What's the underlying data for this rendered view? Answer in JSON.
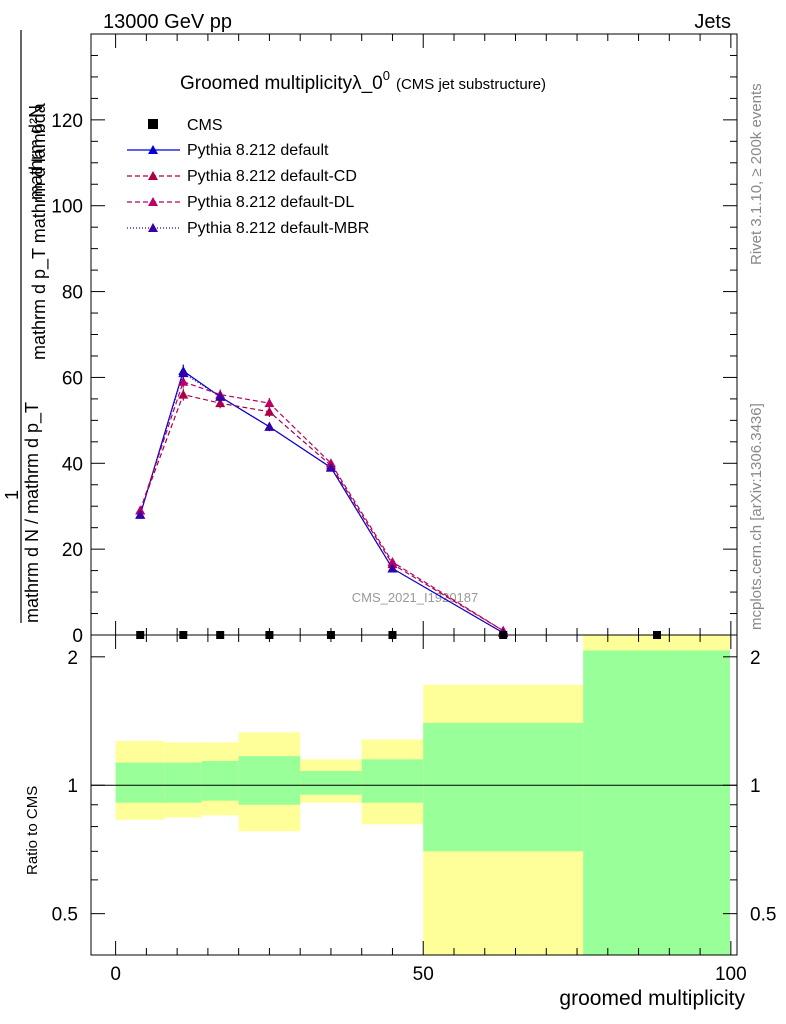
{
  "header": {
    "left": "13000 GeV pp",
    "right": "Jets"
  },
  "side_labels": {
    "rivet": "Rivet 3.1.10, ≥ 200k events",
    "mcplots": "mcplots.cern.ch [arXiv:1306.3436]"
  },
  "title": {
    "main": "Groomed multiplicityλ_0",
    "sup": "0",
    "sub": "(CMS jet substructure)"
  },
  "watermark": "CMS_2021_I1920187",
  "y_label_main": {
    "numerator": "mathrm d²N",
    "denominator": "mathrm d p_T mathrm d lambda",
    "prefix_num": "1",
    "prefix_den": "mathrm d N / mathrm d p_T"
  },
  "y_label_ratio": "Ratio to CMS",
  "x_label": "groomed multiplicity",
  "colors": {
    "band_inner": "#99ff99",
    "band_outer": "#ffff99",
    "default": "#0000dd",
    "cd": "#aa0044",
    "dl": "#bb0066",
    "mbr": "#3300aa",
    "data": "#000000"
  },
  "chart_data": {
    "type": "line",
    "x_range": [
      -4,
      101
    ],
    "main_ylim": [
      0,
      140
    ],
    "ratio_ylim": [
      0.4,
      2.25
    ],
    "x_ticks": [
      0,
      50,
      100
    ],
    "main_y_ticks": [
      0,
      20,
      40,
      60,
      80,
      100,
      120
    ],
    "ratio_y_ticks": [
      {
        "v": 0.5,
        "label": "0.5"
      },
      {
        "v": 1,
        "label": "1"
      },
      {
        "v": 2,
        "label": "2"
      }
    ],
    "bins": [
      [
        0,
        8
      ],
      [
        8,
        14
      ],
      [
        14,
        20
      ],
      [
        20,
        30
      ],
      [
        30,
        40
      ],
      [
        40,
        50
      ],
      [
        50,
        76
      ],
      [
        76,
        100
      ]
    ],
    "x": [
      4,
      11,
      17,
      25,
      35,
      45,
      63,
      88
    ],
    "data": {
      "name": "CMS",
      "values": [
        0,
        0,
        0,
        0,
        0,
        0,
        0,
        0
      ],
      "band_inner": [
        [
          0.91,
          1.13
        ],
        [
          0.91,
          1.13
        ],
        [
          0.92,
          1.14
        ],
        [
          0.9,
          1.17
        ],
        [
          0.95,
          1.08
        ],
        [
          0.91,
          1.15
        ],
        [
          0.7,
          1.4
        ],
        [
          0.4,
          2.07
        ]
      ],
      "band_outer": [
        [
          0.83,
          1.27
        ],
        [
          0.84,
          1.26
        ],
        [
          0.85,
          1.26
        ],
        [
          0.78,
          1.33
        ],
        [
          0.91,
          1.15
        ],
        [
          0.81,
          1.28
        ],
        [
          0.4,
          1.72
        ],
        [
          0.4,
          2.25
        ]
      ]
    },
    "series": [
      {
        "name": "Pythia 8.212 default",
        "key": "default",
        "dash": "",
        "x": [
          4,
          11,
          17,
          25,
          35,
          45,
          63
        ],
        "values": [
          28,
          61.5,
          55.5,
          48.5,
          39,
          15.5,
          0.5
        ],
        "errors": [
          0.8,
          1.5,
          1.2,
          1.0,
          0.8,
          0.6,
          0.3
        ]
      },
      {
        "name": "Pythia 8.212 default-CD",
        "key": "cd",
        "dash": "5,3",
        "x": [
          4,
          11,
          17,
          25,
          35,
          45,
          63
        ],
        "values": [
          29,
          56,
          54,
          52,
          39.5,
          16.5,
          1.0
        ],
        "errors": [
          0.8,
          1.4,
          1.2,
          1.2,
          0.8,
          0.6,
          0.3
        ]
      },
      {
        "name": "Pythia 8.212 default-DL",
        "key": "dl",
        "dash": "5,3",
        "x": [
          4,
          11,
          17,
          25,
          35,
          45,
          63
        ],
        "values": [
          29,
          59,
          56,
          54,
          40,
          17,
          1.0
        ],
        "errors": [
          0.8,
          1.4,
          1.2,
          1.2,
          0.8,
          0.6,
          0.3
        ]
      },
      {
        "name": "Pythia 8.212 default-MBR",
        "key": "mbr",
        "dash": "1,2",
        "x": [
          4,
          11,
          17,
          25,
          35,
          45,
          63
        ],
        "values": [
          28,
          61,
          55.5,
          48.5,
          39,
          15.5,
          0.5
        ],
        "errors": [
          0.8,
          1.5,
          1.2,
          1.0,
          0.8,
          0.6,
          0.3
        ]
      }
    ]
  }
}
